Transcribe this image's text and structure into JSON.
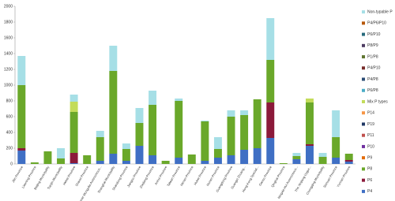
{
  "chart_data": {
    "type": "stacked_bar",
    "categories": [
      "Jilin Province",
      "Liaoning Province",
      "Beijing Municipality",
      "Tianjin Municipality",
      "Hebei Province",
      "Shanxi Province",
      "Inner Mongolia Autonomous...",
      "Shanghai Municipality",
      "Shandong Province",
      "Jiangsu Province",
      "Zhejiang Province",
      "Anhui Province",
      "Taiwan Province",
      "Henan Province",
      "Hubei Province",
      "Hunan Province",
      "Guangdong Province",
      "Guangxi Zhuang...",
      "Hong Kong Special...",
      "Gansu Province",
      "Qinghai Province",
      "Ningxia Hui Autonomous...",
      "The Xinjiang Uygur...",
      "Chongqing Municipality",
      "Sichuan Province",
      "Yunnan Province"
    ],
    "series": [
      {
        "name": "P4",
        "color": "#3f6fc4",
        "values": [
          170,
          0,
          0,
          0,
          10,
          0,
          40,
          130,
          40,
          230,
          110,
          0,
          80,
          0,
          40,
          80,
          110,
          180,
          200,
          330,
          0,
          60,
          230,
          0,
          80,
          30
        ]
      },
      {
        "name": "P6",
        "color": "#8b1a3a",
        "values": [
          30,
          0,
          0,
          0,
          130,
          0,
          0,
          0,
          0,
          0,
          0,
          0,
          0,
          0,
          0,
          0,
          0,
          0,
          0,
          450,
          0,
          0,
          20,
          0,
          0,
          20
        ]
      },
      {
        "name": "P8",
        "color": "#6aa82a",
        "values": [
          800,
          20,
          160,
          70,
          520,
          110,
          300,
          1050,
          150,
          290,
          640,
          40,
          720,
          120,
          500,
          110,
          490,
          440,
          620,
          540,
          10,
          40,
          530,
          90,
          260,
          80
        ]
      },
      {
        "name": "P9",
        "color": "#e46c0a",
        "values": [
          0,
          0,
          0,
          0,
          0,
          0,
          0,
          0,
          0,
          0,
          0,
          0,
          0,
          0,
          0,
          0,
          0,
          0,
          0,
          0,
          0,
          0,
          0,
          0,
          0,
          0
        ]
      },
      {
        "name": "P10",
        "color": "#7030a0",
        "values": [
          0,
          0,
          0,
          0,
          0,
          0,
          0,
          0,
          0,
          0,
          0,
          0,
          0,
          0,
          0,
          0,
          0,
          0,
          0,
          0,
          0,
          0,
          0,
          0,
          0,
          0
        ]
      },
      {
        "name": "P11",
        "color": "#c0504d",
        "values": [
          0,
          0,
          0,
          0,
          0,
          0,
          0,
          0,
          0,
          0,
          0,
          0,
          0,
          0,
          0,
          0,
          0,
          0,
          0,
          0,
          0,
          0,
          0,
          0,
          0,
          0
        ]
      },
      {
        "name": "P19",
        "color": "#1f3864",
        "values": [
          0,
          0,
          0,
          0,
          0,
          0,
          0,
          0,
          0,
          0,
          0,
          0,
          0,
          0,
          0,
          0,
          0,
          0,
          0,
          0,
          0,
          0,
          0,
          0,
          0,
          0
        ]
      },
      {
        "name": "P14",
        "color": "#f79646",
        "values": [
          0,
          0,
          0,
          0,
          0,
          0,
          0,
          0,
          0,
          0,
          0,
          0,
          0,
          0,
          0,
          0,
          0,
          0,
          0,
          0,
          0,
          0,
          0,
          0,
          0,
          0
        ]
      },
      {
        "name": "Mix P types",
        "color": "#c3dc5a",
        "values": [
          0,
          0,
          0,
          0,
          130,
          0,
          0,
          0,
          0,
          0,
          0,
          0,
          0,
          0,
          0,
          0,
          0,
          0,
          0,
          0,
          0,
          0,
          50,
          0,
          0,
          0
        ]
      },
      {
        "name": "P6/P8",
        "color": "#4bacc6",
        "values": [
          0,
          0,
          0,
          0,
          0,
          0,
          0,
          0,
          0,
          0,
          0,
          0,
          0,
          0,
          0,
          0,
          0,
          0,
          0,
          0,
          0,
          0,
          0,
          0,
          0,
          0
        ]
      },
      {
        "name": "P4/P8",
        "color": "#2c4d75",
        "values": [
          0,
          0,
          0,
          0,
          0,
          0,
          0,
          0,
          0,
          0,
          0,
          0,
          0,
          0,
          0,
          0,
          0,
          0,
          0,
          0,
          0,
          0,
          0,
          0,
          0,
          0
        ]
      },
      {
        "name": "P4/P10",
        "color": "#772c2a",
        "values": [
          0,
          0,
          0,
          0,
          0,
          0,
          0,
          0,
          0,
          0,
          0,
          0,
          0,
          0,
          0,
          0,
          0,
          0,
          0,
          0,
          0,
          0,
          0,
          0,
          0,
          0
        ]
      },
      {
        "name": "P1/P8",
        "color": "#5f7530",
        "values": [
          0,
          0,
          0,
          0,
          0,
          0,
          0,
          0,
          0,
          0,
          0,
          0,
          0,
          0,
          0,
          0,
          0,
          0,
          0,
          0,
          0,
          0,
          0,
          0,
          0,
          0
        ]
      },
      {
        "name": "P8/P9",
        "color": "#4d3b62",
        "values": [
          0,
          0,
          0,
          0,
          0,
          0,
          0,
          0,
          0,
          0,
          0,
          0,
          0,
          0,
          0,
          0,
          0,
          0,
          0,
          0,
          0,
          0,
          0,
          0,
          0,
          0
        ]
      },
      {
        "name": "P6/P10",
        "color": "#276a7c",
        "values": [
          0,
          0,
          0,
          0,
          0,
          0,
          0,
          0,
          0,
          0,
          0,
          0,
          0,
          0,
          0,
          0,
          0,
          0,
          0,
          0,
          0,
          0,
          0,
          0,
          0,
          0
        ]
      },
      {
        "name": "P4/P6/P10",
        "color": "#b65708",
        "values": [
          0,
          0,
          0,
          0,
          0,
          0,
          0,
          0,
          0,
          0,
          0,
          0,
          0,
          0,
          0,
          0,
          0,
          0,
          0,
          0,
          0,
          0,
          0,
          0,
          0,
          0
        ]
      },
      {
        "name": "Non-typable P",
        "color": "#a6dfe6",
        "values": [
          370,
          0,
          0,
          130,
          90,
          0,
          80,
          320,
          70,
          190,
          180,
          0,
          30,
          0,
          10,
          150,
          80,
          60,
          0,
          530,
          0,
          40,
          0,
          50,
          340,
          0
        ]
      }
    ],
    "ylim": [
      0,
      2000
    ],
    "yticks": [
      0,
      200,
      400,
      600,
      800,
      1000,
      1200,
      1400,
      1600,
      1800,
      2000
    ],
    "grid": false,
    "legend": "right"
  }
}
